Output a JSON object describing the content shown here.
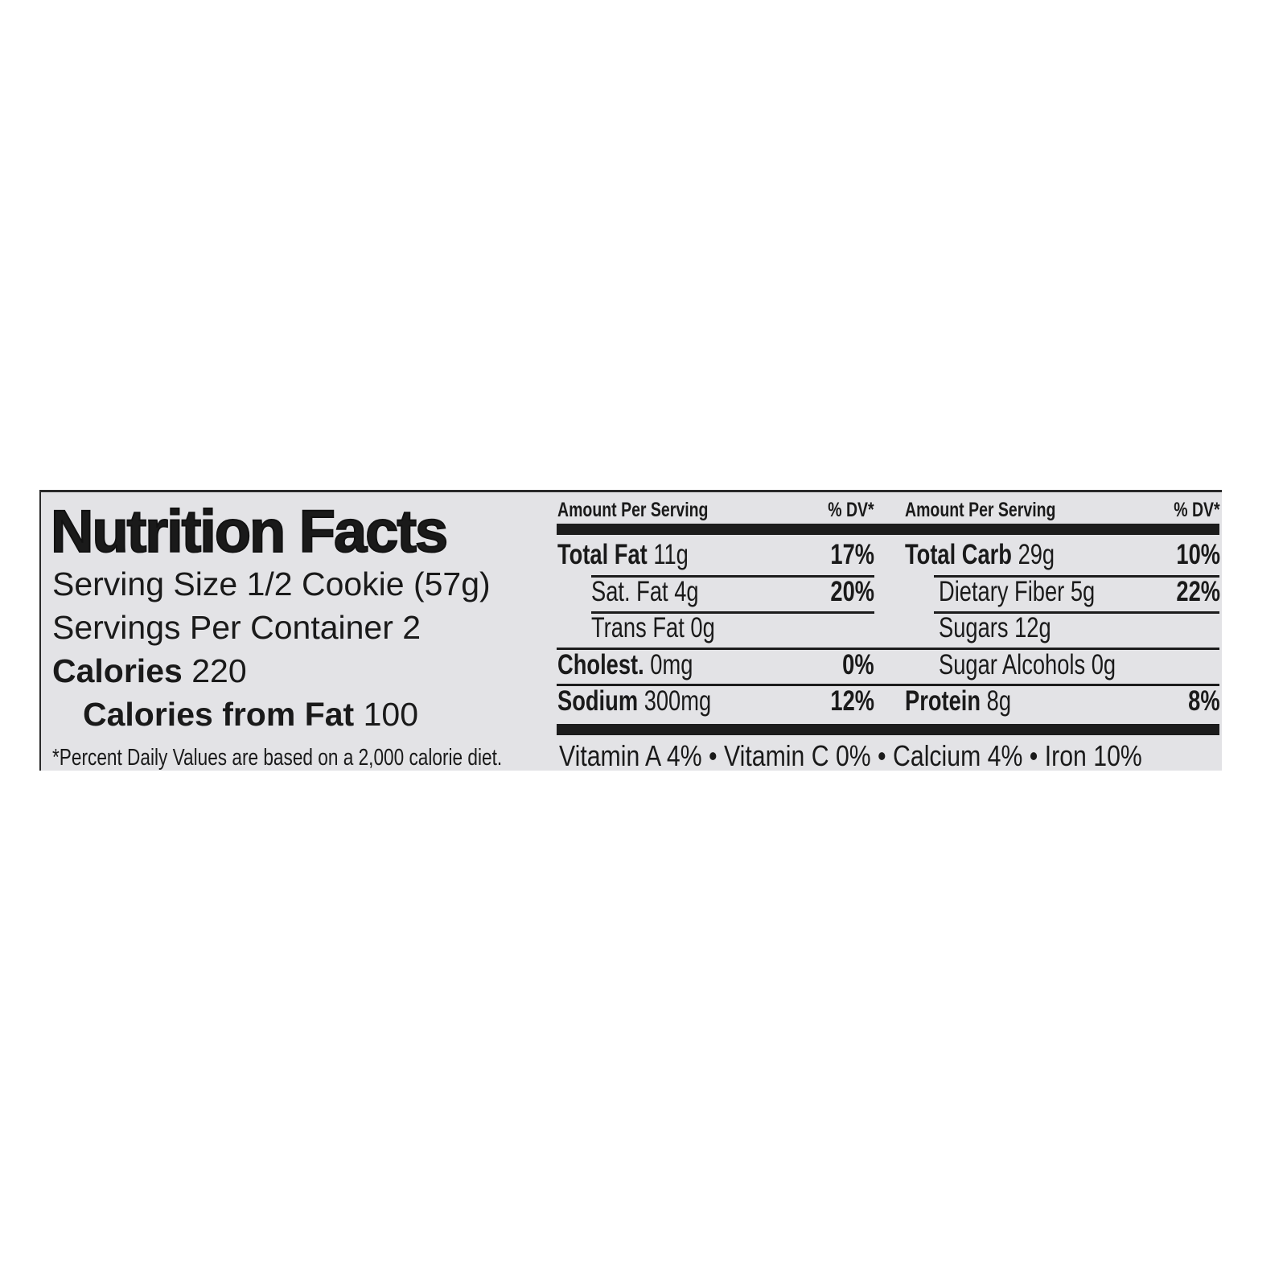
{
  "label": {
    "title": "Nutrition Facts",
    "serving_size": {
      "label": "Serving Size",
      "value": "1/2 Cookie (57g)"
    },
    "servings_per_container": {
      "label": "Servings Per Container",
      "value": "2"
    },
    "calories": {
      "label": "Calories",
      "value": "220"
    },
    "calories_from_fat": {
      "label": "Calories from Fat",
      "value": "100"
    },
    "footnote": "*Percent Daily Values are based on a 2,000 calorie diet.",
    "header": {
      "amount": "Amount Per Serving",
      "dv": "% DV*"
    },
    "left_rows": [
      {
        "name": "Total Fat",
        "amount": "11g",
        "dv": "17%"
      },
      {
        "name": "Sat. Fat",
        "amount": "4g",
        "dv": "20%"
      },
      {
        "name": "Trans Fat",
        "amount": "0g",
        "dv": ""
      },
      {
        "name": "Cholest.",
        "amount": "0mg",
        "dv": "0%"
      },
      {
        "name": "Sodium",
        "amount": "300mg",
        "dv": "12%"
      }
    ],
    "right_rows": [
      {
        "name": "Total Carb",
        "amount": "29g",
        "dv": "10%"
      },
      {
        "name": "Dietary Fiber",
        "amount": "5g",
        "dv": "22%"
      },
      {
        "name": "Sugars",
        "amount": "12g",
        "dv": ""
      },
      {
        "name": "Sugar Alcohols",
        "amount": "0g",
        "dv": ""
      },
      {
        "name": "Protein",
        "amount": "8g",
        "dv": "8%"
      }
    ],
    "vitamins": "Vitamin A 4% • Vitamin C 0% • Calcium 4% • Iron 10%"
  }
}
